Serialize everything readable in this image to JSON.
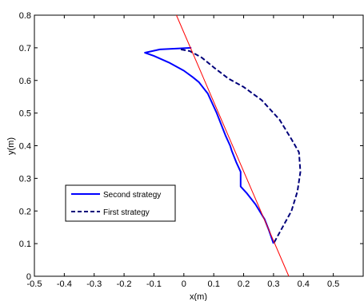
{
  "chart_data": {
    "type": "line",
    "xlabel": "x(m)",
    "ylabel": "y(m)",
    "xlim": [
      -0.5,
      0.6
    ],
    "ylim": [
      0,
      0.8
    ],
    "xticks": [
      "-0.5",
      "-0.4",
      "-0.3",
      "-0.2",
      "-0.1",
      "0",
      "0.1",
      "0.2",
      "0.3",
      "0.4",
      "0.5"
    ],
    "yticks": [
      "0",
      "0.1",
      "0.2",
      "0.3",
      "0.4",
      "0.5",
      "0.6",
      "0.7",
      "0.8"
    ],
    "grid": false,
    "legend_position": "lower-left",
    "series": [
      {
        "name": "Second strategy",
        "color": "#0000ff",
        "style": "solid",
        "x": [
          0.025,
          -0.02,
          -0.08,
          -0.13,
          -0.1,
          -0.05,
          0.0,
          0.03,
          0.05,
          0.08,
          0.11,
          0.14,
          0.155,
          0.16,
          0.175,
          0.19,
          0.19,
          0.21,
          0.24,
          0.27,
          0.285,
          0.3
        ],
        "y": [
          0.7,
          0.698,
          0.695,
          0.685,
          0.675,
          0.655,
          0.63,
          0.61,
          0.595,
          0.56,
          0.5,
          0.43,
          0.4,
          0.385,
          0.35,
          0.32,
          0.275,
          0.255,
          0.22,
          0.175,
          0.14,
          0.1
        ]
      },
      {
        "name": "First strategy",
        "color": "#00007a",
        "style": "dashed",
        "x": [
          -0.01,
          0.02,
          0.06,
          0.1,
          0.15,
          0.2,
          0.26,
          0.32,
          0.36,
          0.385,
          0.39,
          0.38,
          0.36,
          0.33,
          0.3
        ],
        "y": [
          0.695,
          0.69,
          0.67,
          0.64,
          0.605,
          0.58,
          0.54,
          0.48,
          0.42,
          0.38,
          0.32,
          0.26,
          0.2,
          0.15,
          0.1
        ]
      },
      {
        "name": "",
        "color": "#ff0000",
        "style": "solid",
        "x": [
          -0.025,
          0.351
        ],
        "y": [
          0.8,
          0.0
        ]
      }
    ]
  }
}
